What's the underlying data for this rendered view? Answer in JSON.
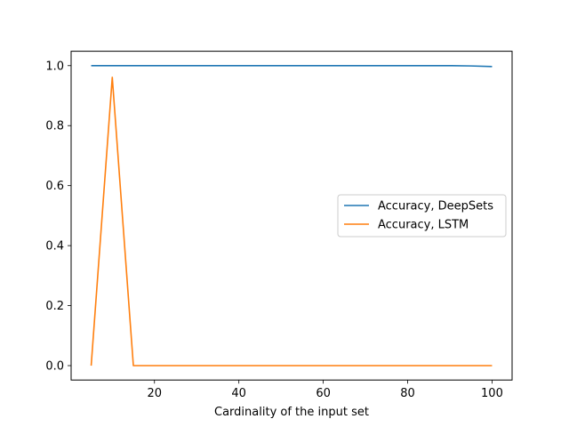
{
  "chart_data": {
    "type": "line",
    "title": "",
    "xlabel": "Cardinality of the input set",
    "ylabel": "",
    "xlim": [
      0.25,
      104.75
    ],
    "ylim": [
      -0.048,
      1.048
    ],
    "xticks": [
      20,
      40,
      60,
      80,
      100
    ],
    "yticks": [
      0.0,
      0.2,
      0.4,
      0.6,
      0.8,
      1.0
    ],
    "xtick_labels": [
      "20",
      "40",
      "60",
      "80",
      "100"
    ],
    "ytick_labels": [
      "0.0",
      "0.2",
      "0.4",
      "0.6",
      "0.8",
      "1.0"
    ],
    "grid": false,
    "legend_position": "center-right",
    "series": [
      {
        "name": "Accuracy, DeepSets",
        "color": "#1f77b4",
        "x": [
          5,
          10,
          15,
          20,
          25,
          30,
          35,
          40,
          45,
          50,
          55,
          60,
          65,
          70,
          75,
          80,
          85,
          90,
          95,
          100
        ],
        "y": [
          1.0,
          1.0,
          1.0,
          1.0,
          1.0,
          1.0,
          1.0,
          1.0,
          1.0,
          1.0,
          1.0,
          1.0,
          1.0,
          1.0,
          1.0,
          1.0,
          1.0,
          1.0,
          0.999,
          0.997
        ]
      },
      {
        "name": "Accuracy, LSTM",
        "color": "#ff7f0e",
        "x": [
          5,
          10,
          15,
          20,
          25,
          30,
          35,
          40,
          45,
          50,
          55,
          60,
          65,
          70,
          75,
          80,
          85,
          90,
          95,
          100
        ],
        "y": [
          0.0,
          0.961,
          0.0,
          0.0,
          0.0,
          0.0,
          0.0,
          0.0,
          0.0,
          0.0,
          0.0,
          0.0,
          0.0,
          0.0,
          0.0,
          0.0,
          0.0,
          0.0,
          0.0,
          0.0
        ]
      }
    ]
  }
}
